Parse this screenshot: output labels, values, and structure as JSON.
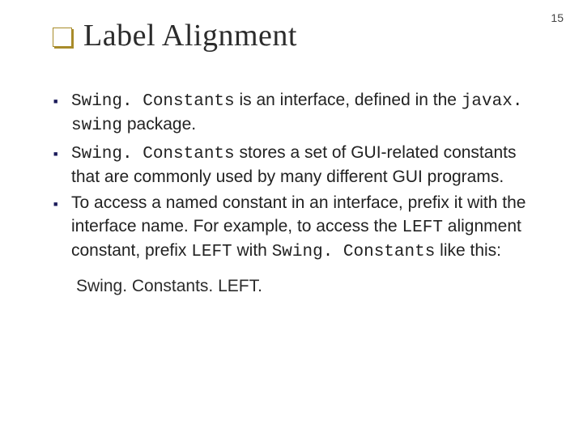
{
  "page_number": "15",
  "title": "Label Alignment",
  "bullets": [
    {
      "pre_code": "Swing. Constants",
      "post1": " is an interface, defined in the ",
      "mid_code": "javax. swing",
      "post2": " package."
    },
    {
      "pre_code": "Swing. Constants",
      "post1": " stores a set of GUI-related constants that are commonly used by many different GUI programs.",
      "mid_code": "",
      "post2": ""
    },
    {
      "pre_code": "",
      "post1": "To access a named constant in an interface, prefix it with the interface name. For example, to access the ",
      "mid_code": "LEFT",
      "post2": " alignment constant, prefix ",
      "mid_code2": "LEFT",
      "post3": " with ",
      "mid_code3": "Swing. Constants",
      "post4": " like this:"
    }
  ],
  "example": "Swing. Constants. LEFT.",
  "colors": {
    "bullet": "#1a1a5a",
    "title_box_border": "#a88b2a",
    "text": "#222222",
    "background": "#ffffff"
  },
  "fonts": {
    "title_size_pt": 38,
    "body_size_pt": 21,
    "pagenum_size_pt": 14
  }
}
